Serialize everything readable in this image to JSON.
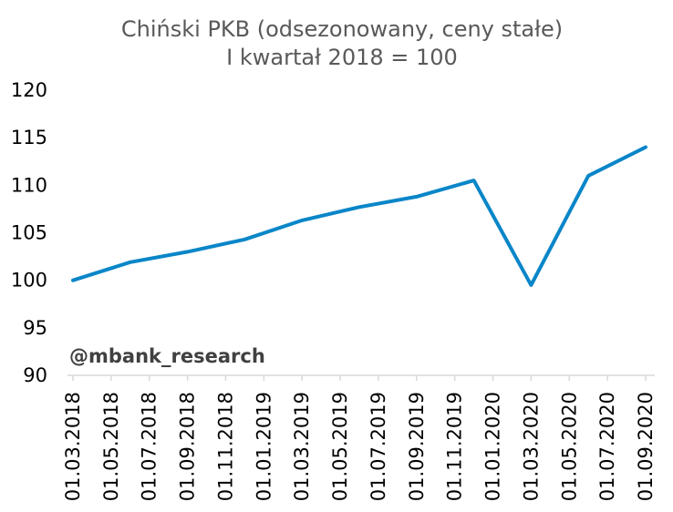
{
  "chart_data": {
    "type": "line",
    "title": "Chiński PKB (odsezonowany, ceny stałe)",
    "subtitle": "I kwartał 2018 = 100",
    "xlabel": "",
    "ylabel": "",
    "ylim": [
      90,
      120
    ],
    "yticks": [
      "90",
      "95",
      "100",
      "105",
      "110",
      "115",
      "120"
    ],
    "xticks": [
      "01.03.2018",
      "01.05.2018",
      "01.07.2018",
      "01.09.2018",
      "01.11.2018",
      "01.01.2019",
      "01.03.2019",
      "01.05.2019",
      "01.07.2019",
      "01.09.2019",
      "01.11.2019",
      "01.01.2020",
      "01.03.2020",
      "01.05.2020",
      "01.07.2020",
      "01.09.2020"
    ],
    "grid": false,
    "series": [
      {
        "color": "#0a86c8",
        "points": [
          {
            "x": "01.03.2018",
            "y": 100.0
          },
          {
            "x": "01.06.2018",
            "y": 101.9
          },
          {
            "x": "01.09.2018",
            "y": 103.0
          },
          {
            "x": "01.12.2018",
            "y": 104.3
          },
          {
            "x": "01.03.2019",
            "y": 106.3
          },
          {
            "x": "01.06.2019",
            "y": 107.7
          },
          {
            "x": "01.09.2019",
            "y": 108.8
          },
          {
            "x": "01.12.2019",
            "y": 110.5
          },
          {
            "x": "01.03.2020",
            "y": 99.5
          },
          {
            "x": "01.06.2020",
            "y": 111.0
          },
          {
            "x": "01.09.2020",
            "y": 114.0
          }
        ]
      }
    ],
    "annotations": [
      "@mbank_research"
    ]
  }
}
